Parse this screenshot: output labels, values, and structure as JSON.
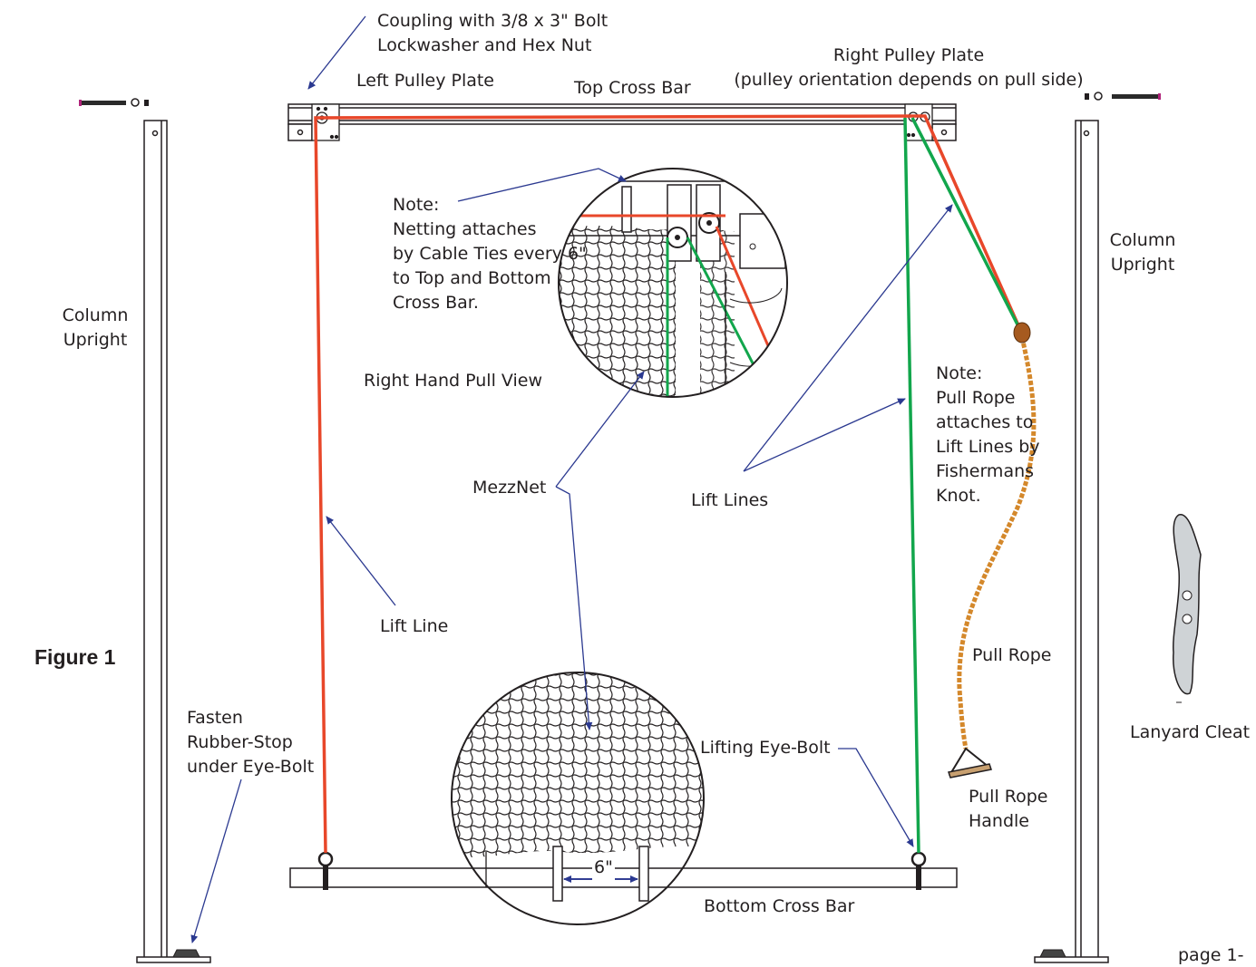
{
  "colors": {
    "lift_line_red": "#e8472a",
    "lift_line_green": "#12a64c",
    "leader_blue": "#2b3990",
    "pull_rope": "#d4882b",
    "line": "#231f20"
  },
  "labels": {
    "coupling": [
      "Coupling with 3/8 x 3\" Bolt",
      "Lockwasher and Hex Nut"
    ],
    "left_pulley_plate": "Left Pulley Plate",
    "top_cross_bar": "Top Cross Bar",
    "right_pulley_plate": [
      "Right Pulley Plate",
      "(pulley orientation depends on pull side)"
    ],
    "column_upright_left": [
      "Column",
      "Upright"
    ],
    "column_upright_right": [
      "Column",
      "Upright"
    ],
    "note_netting": [
      "Note:",
      "Netting attaches",
      "by Cable Ties every 6\"",
      "to Top and Bottom",
      "Cross Bar."
    ],
    "right_hand_pull_view": "Right Hand Pull View",
    "note_pull_rope": [
      "Note:",
      "Pull Rope",
      "attaches to",
      "Lift Lines by",
      "Fishermans",
      "Knot."
    ],
    "mezznet": "MezzNet",
    "lift_lines": "Lift Lines",
    "lift_line": "Lift Line",
    "figure": "Figure 1",
    "pull_rope": "Pull Rope",
    "lanyard_cleat": "Lanyard Cleat",
    "fasten": [
      "Fasten",
      "Rubber-Stop",
      "under Eye-Bolt"
    ],
    "lifting_eye_bolt": "Lifting Eye-Bolt",
    "pull_rope_handle": [
      "Pull Rope",
      "Handle"
    ],
    "six_inch": "6\"",
    "bottom_cross_bar": "Bottom Cross Bar",
    "page": "page 1-"
  }
}
